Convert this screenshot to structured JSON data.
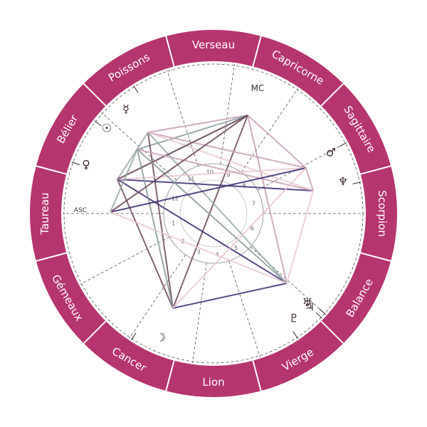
{
  "chart": {
    "colors": {
      "ring": "#b5356f",
      "divider": "#ffffff",
      "dashed": "#555555",
      "inner_circle": "#777777"
    },
    "signs": [
      {
        "label": "Verseau"
      },
      {
        "label": "Capricorne"
      },
      {
        "label": "Sagittaire"
      },
      {
        "label": "Scorpion"
      },
      {
        "label": "Balance"
      },
      {
        "label": "Vierge"
      },
      {
        "label": "Lion"
      },
      {
        "label": "Cancer"
      },
      {
        "label": "Gémeaux"
      },
      {
        "label": "Taureau"
      },
      {
        "label": "Bélier"
      },
      {
        "label": "Poissons"
      }
    ],
    "angles": {
      "mc": "MC",
      "asc": "ASC"
    },
    "houses": [
      "1",
      "2",
      "3",
      "4",
      "5",
      "6",
      "7",
      "8",
      "9",
      "10",
      "11",
      "12"
    ],
    "planets": [
      {
        "name": "mercury",
        "glyph": "☿"
      },
      {
        "name": "sun",
        "glyph": "☉"
      },
      {
        "name": "venus",
        "glyph": "♀"
      },
      {
        "name": "mars",
        "glyph": "♂"
      },
      {
        "name": "neptune",
        "glyph": "♆"
      },
      {
        "name": "uranus",
        "glyph": "♅"
      },
      {
        "name": "jupiter",
        "glyph": "♃"
      },
      {
        "name": "pluto",
        "glyph": "♇"
      },
      {
        "name": "moon",
        "glyph": "☽"
      }
    ],
    "aspect_colors": [
      "#c8a0b8",
      "#9aa8a8",
      "#3a2a6e",
      "#6a4a5a",
      "#e8c8d0",
      "#8a9a9a"
    ]
  }
}
